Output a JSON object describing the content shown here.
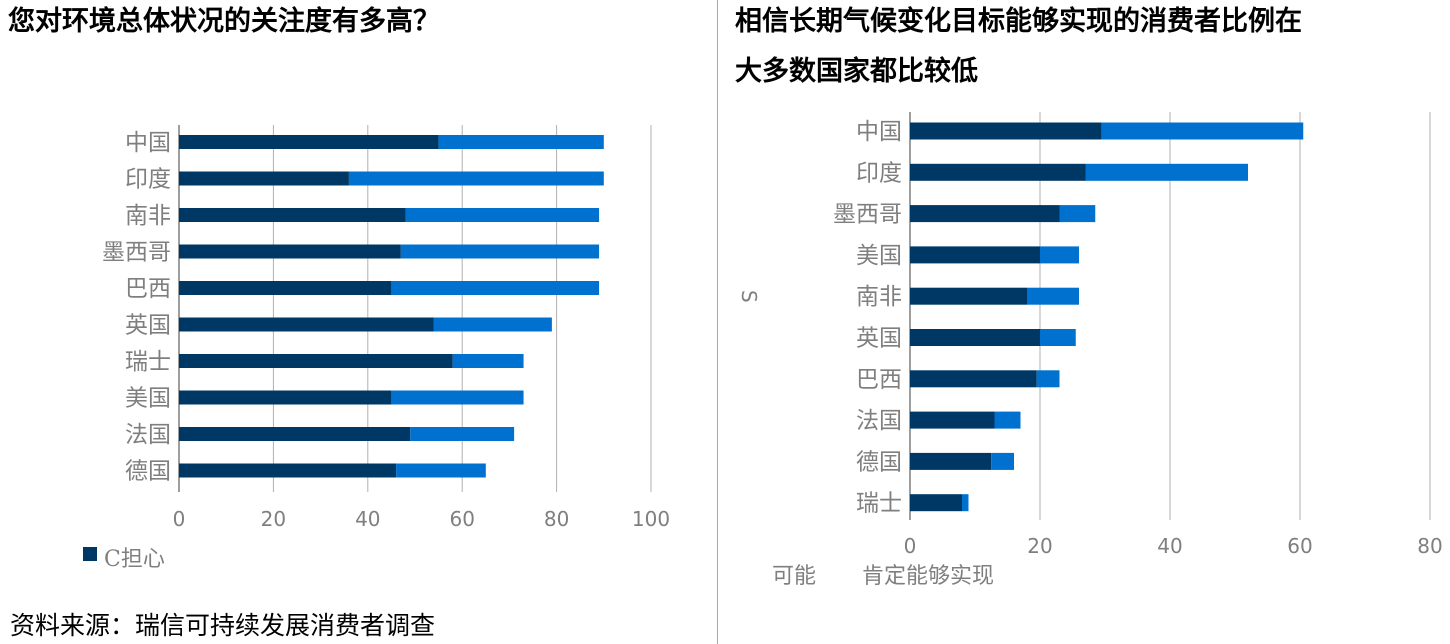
{
  "left": {
    "title": "您对环境总体状况的关注度有多高？",
    "source": "资料来源：瑞信可持续发展消费者调查",
    "legend_label": "C担心",
    "colors": {
      "dark": "#003865",
      "light": "#0071ce",
      "grid": "#b0b0b0"
    }
  },
  "right": {
    "title_line1": "相信长期气候变化目标能够实现的消费者比例在",
    "title_line2": "大多数国家都比较低",
    "stray_mark": "S",
    "legend_label_1": "可能",
    "legend_label_2": "肯定能够实现"
  },
  "chart_data": [
    {
      "type": "bar",
      "orientation": "horizontal",
      "stacked": true,
      "title": "您对环境总体状况的关注度有多高？",
      "categories": [
        "中国",
        "印度",
        "南非",
        "墨西哥",
        "巴西",
        "英国",
        "瑞士",
        "美国",
        "法国",
        "德国"
      ],
      "series": [
        {
          "name": "C担心",
          "color": "#003865",
          "values": [
            55,
            36,
            48,
            47,
            45,
            54,
            58,
            45,
            49,
            46
          ]
        },
        {
          "color": "#0071ce",
          "values": [
            35,
            54,
            41,
            42,
            44,
            25,
            15,
            28,
            22,
            19
          ]
        }
      ],
      "xlim": [
        0,
        100
      ],
      "xticks": [
        0,
        20,
        40,
        60,
        80,
        100
      ],
      "grid": true,
      "legend": "bottom-left"
    },
    {
      "type": "bar",
      "orientation": "horizontal",
      "stacked": true,
      "title": "相信长期气候变化目标能够实现的消费者比例在大多数国家都比较低",
      "categories": [
        "中国",
        "印度",
        "墨西哥",
        "美国",
        "南非",
        "英国",
        "巴西",
        "法国",
        "德国",
        "瑞士"
      ],
      "series": [
        {
          "name": "可能",
          "color": "#003865",
          "values": [
            29.5,
            27,
            23,
            20,
            18,
            20,
            19.5,
            13,
            12.5,
            8
          ]
        },
        {
          "name": "肯定能够实现",
          "color": "#0071ce",
          "values": [
            31,
            25,
            5.5,
            6,
            8,
            5.5,
            3.5,
            4,
            3.5,
            1
          ]
        }
      ],
      "xlim": [
        0,
        80
      ],
      "xticks": [
        0,
        20,
        40,
        60,
        80
      ],
      "grid": true,
      "legend": "bottom"
    }
  ]
}
